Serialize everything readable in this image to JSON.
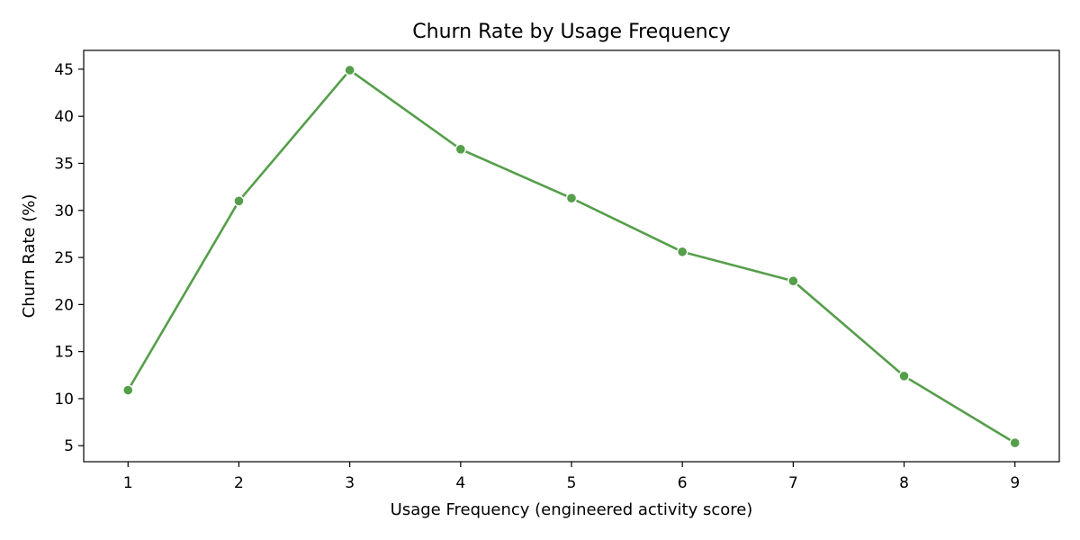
{
  "chart_data": {
    "type": "line",
    "title": "Churn Rate by Usage Frequency",
    "xlabel": "Usage Frequency (engineered activity score)",
    "ylabel": "Churn Rate (%)",
    "x": [
      1,
      2,
      3,
      4,
      5,
      6,
      7,
      8,
      9
    ],
    "xlim": [
      0.6,
      9.4
    ],
    "ylim": [
      3.3,
      47.0
    ],
    "xticks": [
      1,
      2,
      3,
      4,
      5,
      6,
      7,
      8,
      9
    ],
    "yticks": [
      5,
      10,
      15,
      20,
      25,
      30,
      35,
      40,
      45
    ],
    "grid": false,
    "series": [
      {
        "values": [
          10.9,
          31.0,
          44.9,
          36.5,
          31.3,
          25.6,
          22.5,
          12.4,
          5.3
        ],
        "color": "#559e4a"
      }
    ]
  }
}
